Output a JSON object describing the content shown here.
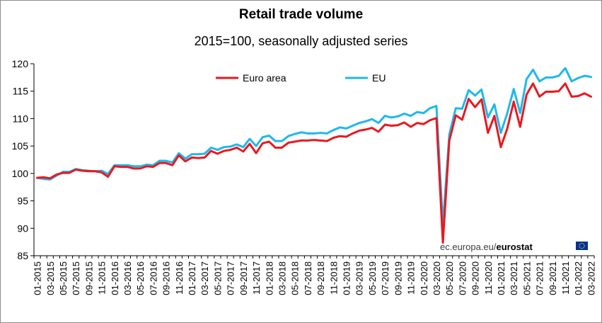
{
  "chart_data": {
    "type": "line",
    "title": "Retail trade volume",
    "subtitle": "2015=100, seasonally adjusted series",
    "xlabel": "",
    "ylabel": "",
    "ylim": [
      85,
      120
    ],
    "yticks": [
      85,
      90,
      95,
      100,
      105,
      110,
      115,
      120
    ],
    "grid": false,
    "legend_position": "top-center",
    "x": [
      "01-2015",
      "02-2015",
      "03-2015",
      "04-2015",
      "05-2015",
      "06-2015",
      "07-2015",
      "08-2015",
      "09-2015",
      "10-2015",
      "11-2015",
      "12-2015",
      "01-2016",
      "02-2016",
      "03-2016",
      "04-2016",
      "05-2016",
      "06-2016",
      "07-2016",
      "08-2016",
      "09-2016",
      "10-2016",
      "11-2016",
      "12-2016",
      "01-2017",
      "02-2017",
      "03-2017",
      "04-2017",
      "05-2017",
      "06-2017",
      "07-2017",
      "08-2017",
      "09-2017",
      "10-2017",
      "11-2017",
      "12-2017",
      "01-2018",
      "02-2018",
      "03-2018",
      "04-2018",
      "05-2018",
      "06-2018",
      "07-2018",
      "08-2018",
      "09-2018",
      "10-2018",
      "11-2018",
      "12-2018",
      "01-2019",
      "02-2019",
      "03-2019",
      "04-2019",
      "05-2019",
      "06-2019",
      "07-2019",
      "08-2019",
      "09-2019",
      "10-2019",
      "11-2019",
      "12-2019",
      "01-2020",
      "02-2020",
      "03-2020",
      "04-2020",
      "05-2020",
      "06-2020",
      "07-2020",
      "08-2020",
      "09-2020",
      "10-2020",
      "11-2020",
      "12-2020",
      "01-2021",
      "02-2021",
      "03-2021",
      "04-2021",
      "05-2021",
      "06-2021",
      "07-2021",
      "08-2021",
      "09-2021",
      "10-2021",
      "11-2021",
      "12-2021",
      "01-2022",
      "02-2022",
      "03-2022"
    ],
    "xtick_labels": [
      "01-2015",
      "03-2015",
      "05-2015",
      "07-2015",
      "09-2015",
      "11-2015",
      "01-2016",
      "03-2016",
      "05-2016",
      "07-2016",
      "09-2016",
      "11-2016",
      "01-2017",
      "03-2017",
      "05-2017",
      "07-2017",
      "09-2017",
      "11-2017",
      "01-2018",
      "03-2018",
      "05-2018",
      "07-2018",
      "09-2018",
      "11-2018",
      "01-2019",
      "03-2019",
      "05-2019",
      "07-2019",
      "09-2019",
      "11-2019",
      "01-2020",
      "03-2020",
      "05-2020",
      "07-2020",
      "09-2020",
      "11-2020",
      "01-2021",
      "03-2021",
      "05-2021",
      "07-2021",
      "09-2021",
      "11-2021",
      "01-2022",
      "03-2022"
    ],
    "series": [
      {
        "name": "Euro area",
        "color": "#e8191f",
        "values": [
          99.2,
          99.3,
          99.1,
          99.8,
          100.1,
          100.1,
          100.7,
          100.5,
          100.4,
          100.4,
          100.2,
          99.4,
          101.3,
          101.2,
          101.2,
          100.9,
          100.9,
          101.3,
          101.2,
          101.9,
          101.9,
          101.5,
          103.3,
          102.2,
          102.9,
          102.8,
          102.9,
          104.1,
          103.6,
          104.1,
          104.3,
          104.7,
          104.0,
          105.4,
          103.7,
          105.5,
          105.8,
          104.7,
          104.7,
          105.6,
          105.8,
          106.0,
          106.0,
          106.1,
          106.0,
          105.9,
          106.5,
          106.8,
          106.7,
          107.3,
          107.8,
          108.0,
          108.3,
          107.6,
          108.9,
          108.7,
          108.8,
          109.3,
          108.5,
          109.2,
          109.0,
          109.7,
          110.1,
          87.4,
          106.0,
          110.6,
          109.8,
          113.6,
          112.1,
          113.5,
          107.4,
          110.5,
          104.8,
          108.2,
          113.1,
          108.5,
          114.4,
          116.4,
          114.0,
          114.9,
          114.9,
          115.0,
          116.4,
          114.0,
          114.1,
          114.6,
          114.0
        ]
      },
      {
        "name": "EU",
        "color": "#1fb8ec",
        "values": [
          99.2,
          99.0,
          98.9,
          99.6,
          100.3,
          100.3,
          100.8,
          100.6,
          100.5,
          100.4,
          100.5,
          99.9,
          101.5,
          101.5,
          101.5,
          101.3,
          101.3,
          101.6,
          101.5,
          102.3,
          102.3,
          102.0,
          103.7,
          102.7,
          103.5,
          103.5,
          103.6,
          104.7,
          104.3,
          104.8,
          104.9,
          105.3,
          104.8,
          106.3,
          105.0,
          106.6,
          106.9,
          105.9,
          105.9,
          106.8,
          107.2,
          107.5,
          107.3,
          107.3,
          107.4,
          107.3,
          107.9,
          108.4,
          108.2,
          108.7,
          109.2,
          109.5,
          109.9,
          109.2,
          110.5,
          110.2,
          110.4,
          110.9,
          110.5,
          111.2,
          111.0,
          111.9,
          112.3,
          90.6,
          107.1,
          111.9,
          111.8,
          115.2,
          114.2,
          115.3,
          110.2,
          112.6,
          107.4,
          111.0,
          115.4,
          111.0,
          117.2,
          118.9,
          116.8,
          117.5,
          117.5,
          117.8,
          119.2,
          116.8,
          117.4,
          117.8,
          117.6
        ]
      }
    ]
  },
  "source": {
    "prefix": "ec.europa.eu/",
    "brand": "eurostat"
  }
}
